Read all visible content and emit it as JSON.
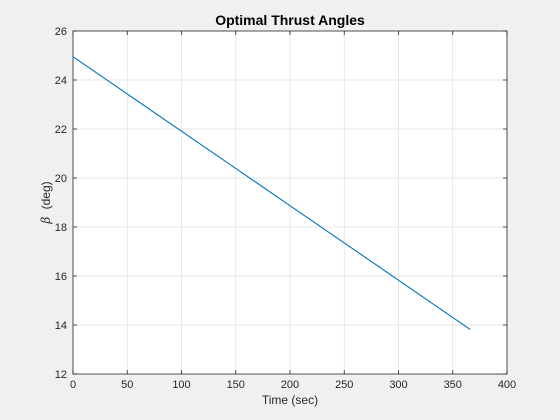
{
  "chart_data": {
    "type": "line",
    "title": "Optimal Thrust Angles",
    "xlabel": "Time (sec)",
    "ylabel_symbol": "β",
    "ylabel_text": "(deg)",
    "xlim": [
      0,
      400
    ],
    "ylim": [
      12,
      26
    ],
    "xticks": [
      0,
      50,
      100,
      150,
      200,
      250,
      300,
      350,
      400
    ],
    "yticks": [
      12,
      14,
      16,
      18,
      20,
      22,
      24,
      26
    ],
    "grid": true,
    "series": [
      {
        "color": "#0072bd",
        "x": [
          0,
          50,
          100,
          150,
          200,
          250,
          300,
          366
        ],
        "y": [
          24.95,
          23.43,
          21.91,
          20.39,
          18.87,
          17.35,
          15.83,
          13.82
        ]
      }
    ]
  },
  "colors": {
    "background": "#f0f0f0",
    "axes_background": "#ffffff",
    "grid": "#dfdfdf",
    "axis": "#262626"
  }
}
